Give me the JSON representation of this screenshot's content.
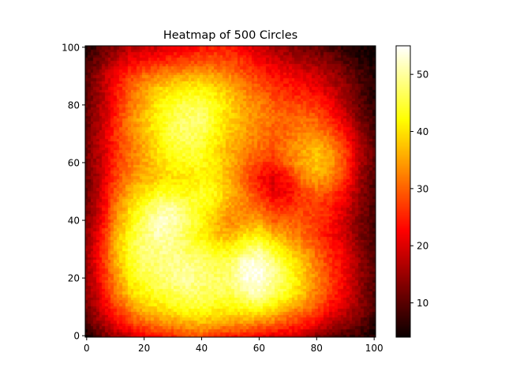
{
  "chart_data": {
    "type": "heatmap",
    "title": "Heatmap of 500 Circles",
    "xlabel": "",
    "ylabel": "",
    "xlim": [
      0,
      101
    ],
    "ylim": [
      0,
      101
    ],
    "xticks": [
      "0",
      "20",
      "40",
      "60",
      "80",
      "100"
    ],
    "yticks": [
      "0",
      "20",
      "40",
      "60",
      "80",
      "100"
    ],
    "colorbar": {
      "colormap": "hot",
      "range": [
        4,
        55
      ],
      "ticks": [
        "10",
        "20",
        "30",
        "40",
        "50"
      ]
    },
    "grid_size": 101,
    "grid_downsample": 5,
    "grid_rows_bottom_to_top": [
      [
        5,
        11,
        15,
        18,
        22,
        24,
        25,
        29,
        29,
        26,
        25,
        24,
        23,
        20,
        20,
        19,
        13,
        11,
        9,
        7,
        5
      ],
      [
        9,
        16,
        22,
        27,
        31,
        34,
        35,
        36,
        37,
        37,
        35,
        35,
        33,
        32,
        28,
        26,
        23,
        18,
        15,
        12,
        7
      ],
      [
        12,
        19,
        27,
        33,
        38,
        40,
        42,
        44,
        44,
        42,
        42,
        43,
        44,
        40,
        36,
        33,
        29,
        23,
        19,
        14,
        9
      ],
      [
        14,
        21,
        31,
        38,
        42,
        44,
        46,
        48,
        47,
        46,
        46,
        49,
        52,
        47,
        43,
        38,
        32,
        27,
        21,
        15,
        10
      ],
      [
        14,
        23,
        33,
        41,
        45,
        47,
        49,
        50,
        48,
        47,
        48,
        53,
        54,
        50,
        45,
        39,
        33,
        27,
        22,
        15,
        10
      ],
      [
        15,
        24,
        35,
        43,
        47,
        48,
        49,
        49,
        48,
        46,
        47,
        53,
        54,
        49,
        43,
        38,
        32,
        26,
        22,
        15,
        10
      ],
      [
        15,
        24,
        36,
        44,
        48,
        49,
        49,
        47,
        45,
        43,
        42,
        47,
        49,
        44,
        39,
        35,
        30,
        25,
        21,
        14,
        9
      ],
      [
        14,
        23,
        35,
        43,
        48,
        51,
        50,
        46,
        42,
        38,
        36,
        40,
        42,
        37,
        34,
        31,
        27,
        23,
        19,
        13,
        9
      ],
      [
        13,
        21,
        33,
        41,
        47,
        52,
        52,
        47,
        42,
        37,
        33,
        34,
        35,
        30,
        30,
        29,
        27,
        24,
        19,
        13,
        9
      ],
      [
        12,
        20,
        31,
        39,
        44,
        49,
        50,
        46,
        44,
        40,
        35,
        33,
        30,
        26,
        25,
        27,
        27,
        25,
        20,
        14,
        9
      ],
      [
        11,
        19,
        29,
        36,
        40,
        43,
        44,
        42,
        44,
        42,
        37,
        32,
        26,
        21,
        22,
        27,
        30,
        28,
        23,
        15,
        9
      ],
      [
        11,
        18,
        27,
        33,
        36,
        38,
        40,
        40,
        41,
        40,
        36,
        30,
        24,
        20,
        24,
        32,
        35,
        33,
        26,
        16,
        10
      ],
      [
        12,
        18,
        26,
        31,
        35,
        39,
        42,
        43,
        43,
        40,
        36,
        31,
        27,
        26,
        30,
        35,
        38,
        35,
        28,
        17,
        11
      ],
      [
        12,
        18,
        25,
        31,
        35,
        40,
        44,
        45,
        44,
        40,
        36,
        33,
        31,
        29,
        32,
        35,
        37,
        34,
        27,
        17,
        11
      ],
      [
        12,
        18,
        26,
        32,
        37,
        41,
        46,
        47,
        46,
        42,
        38,
        35,
        32,
        30,
        31,
        33,
        33,
        30,
        24,
        15,
        10
      ],
      [
        11,
        17,
        25,
        32,
        37,
        42,
        46,
        48,
        48,
        43,
        39,
        35,
        33,
        31,
        30,
        31,
        30,
        26,
        20,
        13,
        8
      ],
      [
        11,
        17,
        24,
        31,
        36,
        41,
        44,
        46,
        47,
        43,
        39,
        35,
        33,
        30,
        28,
        28,
        26,
        22,
        17,
        11,
        7
      ],
      [
        10,
        16,
        23,
        30,
        35,
        39,
        41,
        42,
        42,
        40,
        37,
        33,
        30,
        27,
        25,
        24,
        22,
        19,
        15,
        10,
        6
      ],
      [
        10,
        16,
        22,
        27,
        31,
        33,
        35,
        36,
        37,
        35,
        33,
        29,
        27,
        24,
        23,
        21,
        19,
        16,
        13,
        9,
        6
      ],
      [
        8,
        13,
        18,
        22,
        24,
        25,
        27,
        28,
        29,
        29,
        28,
        26,
        23,
        20,
        18,
        17,
        15,
        13,
        10,
        7,
        5
      ],
      [
        6,
        10,
        14,
        17,
        18,
        19,
        21,
        22,
        24,
        25,
        24,
        22,
        19,
        16,
        14,
        12,
        11,
        9,
        7,
        5,
        4
      ]
    ]
  }
}
